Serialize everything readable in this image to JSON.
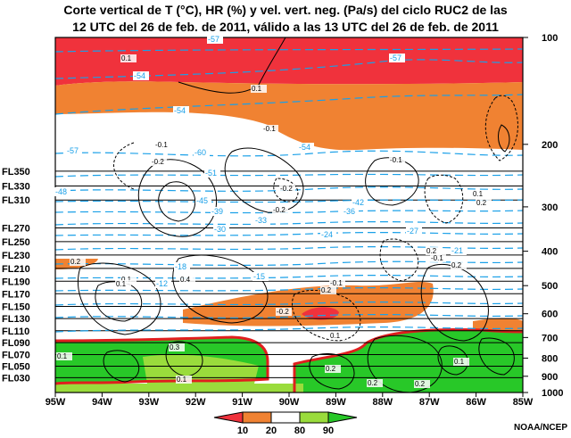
{
  "title_line1": "Corte vertical de T (°C), HR (%) y vel. vert. neg. (Pa/s) del ciclo RUC2 de las",
  "title_line2": "12 UTC del 26 de feb. de 2011, válido a las 13 UTC del 26 de feb. de 2011",
  "credit": "NOAA/NCEP",
  "colors": {
    "rh_lt10": "#f0323c",
    "rh_10_20": "#f08232",
    "rh_80_90": "#9adc3c",
    "rh_gt90": "#28c828",
    "temp": "#1aa0e8",
    "outline": "#e01e1e"
  },
  "chart_data": {
    "type": "vertical cross-section",
    "x_ticks": [
      "95W",
      "94W",
      "93W",
      "92W",
      "91W",
      "90W",
      "89W",
      "88W",
      "87W",
      "86W",
      "85W"
    ],
    "y_right_pressure_hpa": [
      "100",
      "200",
      "300",
      "400",
      "500",
      "600",
      "700",
      "800",
      "900",
      "1000"
    ],
    "y_left_flight_levels": [
      {
        "label": "FL350",
        "hpa": 238
      },
      {
        "label": "FL330",
        "hpa": 262
      },
      {
        "label": "FL310",
        "hpa": 287
      },
      {
        "label": "FL270",
        "hpa": 344
      },
      {
        "label": "FL250",
        "hpa": 376
      },
      {
        "label": "FL230",
        "hpa": 410
      },
      {
        "label": "FL210",
        "hpa": 447
      },
      {
        "label": "FL190",
        "hpa": 486
      },
      {
        "label": "FL170",
        "hpa": 527
      },
      {
        "label": "FL150",
        "hpa": 572
      },
      {
        "label": "FL130",
        "hpa": 619
      },
      {
        "label": "FL110",
        "hpa": 670
      },
      {
        "label": "FL090",
        "hpa": 724
      },
      {
        "label": "FL070",
        "hpa": 782
      },
      {
        "label": "FL050",
        "hpa": 843
      },
      {
        "label": "FL030",
        "hpa": 908
      }
    ],
    "temperature_labels_c": [
      "-57",
      "-57",
      "-54",
      "-54",
      "-57",
      "-60",
      "-54",
      "-51",
      "-48",
      "-45",
      "-42",
      "-39",
      "-36",
      "-33",
      "-30",
      "-27",
      "-24",
      "-21",
      "-18",
      "-15",
      "-12"
    ],
    "omega_labels_pa_s": [
      "0.1",
      "0.1",
      "-0.1",
      "-0.1",
      "-0.2",
      "-0.1",
      "-0.2",
      "0.1",
      "-0.2",
      "0.2",
      "0.2",
      "0.2",
      "-0.1",
      "0.2",
      "0.1",
      "0.1",
      "0.4",
      "-0.1",
      "0.2",
      "-0.2",
      "0.1",
      "0.1",
      "0.3",
      "0.2",
      "0.2",
      "0.2",
      "0.1",
      "0.1"
    ],
    "rh_legend": {
      "boundaries": [
        "10",
        "20",
        "80",
        "90"
      ],
      "classes": [
        "<10",
        "10-20",
        "20-80",
        "80-90",
        ">90"
      ]
    }
  }
}
